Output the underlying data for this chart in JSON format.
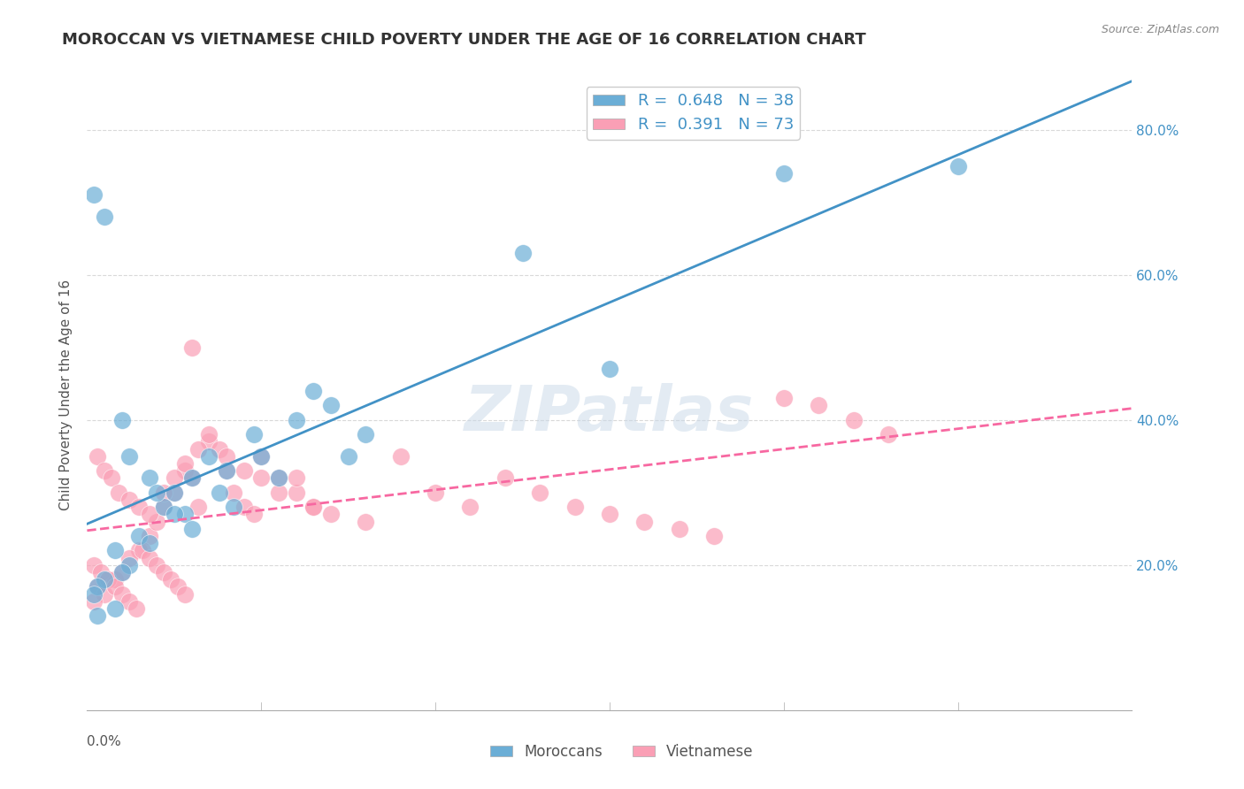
{
  "title": "MOROCCAN VS VIETNAMESE CHILD POVERTY UNDER THE AGE OF 16 CORRELATION CHART",
  "source": "Source: ZipAtlas.com",
  "ylabel": "Child Poverty Under the Age of 16",
  "xlim": [
    0.0,
    0.3
  ],
  "ylim": [
    0.0,
    0.87
  ],
  "moroccan_R": "0.648",
  "moroccan_N": "38",
  "vietnamese_R": "0.391",
  "vietnamese_N": "73",
  "moroccan_color": "#6baed6",
  "vietnamese_color": "#fa9fb5",
  "moroccan_line_color": "#4292c6",
  "vietnamese_line_color": "#f768a1",
  "moroccan_scatter_x": [
    0.005,
    0.003,
    0.002,
    0.012,
    0.008,
    0.015,
    0.018,
    0.01,
    0.022,
    0.025,
    0.03,
    0.028,
    0.035,
    0.04,
    0.038,
    0.042,
    0.048,
    0.05,
    0.055,
    0.06,
    0.065,
    0.07,
    0.075,
    0.08,
    0.01,
    0.012,
    0.018,
    0.02,
    0.025,
    0.03,
    0.15,
    0.2,
    0.125,
    0.25,
    0.002,
    0.005,
    0.008,
    0.003
  ],
  "moroccan_scatter_y": [
    0.18,
    0.17,
    0.16,
    0.2,
    0.22,
    0.24,
    0.23,
    0.19,
    0.28,
    0.3,
    0.32,
    0.27,
    0.35,
    0.33,
    0.3,
    0.28,
    0.38,
    0.35,
    0.32,
    0.4,
    0.44,
    0.42,
    0.35,
    0.38,
    0.4,
    0.35,
    0.32,
    0.3,
    0.27,
    0.25,
    0.47,
    0.74,
    0.63,
    0.75,
    0.71,
    0.68,
    0.14,
    0.13
  ],
  "vietnamese_scatter_x": [
    0.003,
    0.005,
    0.002,
    0.008,
    0.01,
    0.015,
    0.012,
    0.018,
    0.02,
    0.022,
    0.025,
    0.028,
    0.03,
    0.032,
    0.035,
    0.038,
    0.04,
    0.042,
    0.045,
    0.048,
    0.05,
    0.055,
    0.06,
    0.065,
    0.003,
    0.005,
    0.007,
    0.009,
    0.012,
    0.015,
    0.018,
    0.022,
    0.025,
    0.028,
    0.032,
    0.035,
    0.04,
    0.045,
    0.05,
    0.055,
    0.06,
    0.065,
    0.07,
    0.08,
    0.09,
    0.1,
    0.11,
    0.12,
    0.13,
    0.14,
    0.15,
    0.16,
    0.17,
    0.18,
    0.2,
    0.21,
    0.22,
    0.23,
    0.002,
    0.004,
    0.006,
    0.008,
    0.01,
    0.012,
    0.014,
    0.016,
    0.018,
    0.02,
    0.022,
    0.024,
    0.026,
    0.028,
    0.03
  ],
  "vietnamese_scatter_y": [
    0.17,
    0.16,
    0.15,
    0.18,
    0.19,
    0.22,
    0.21,
    0.24,
    0.26,
    0.28,
    0.3,
    0.33,
    0.32,
    0.28,
    0.37,
    0.36,
    0.33,
    0.3,
    0.28,
    0.27,
    0.35,
    0.32,
    0.3,
    0.28,
    0.35,
    0.33,
    0.32,
    0.3,
    0.29,
    0.28,
    0.27,
    0.3,
    0.32,
    0.34,
    0.36,
    0.38,
    0.35,
    0.33,
    0.32,
    0.3,
    0.32,
    0.28,
    0.27,
    0.26,
    0.35,
    0.3,
    0.28,
    0.32,
    0.3,
    0.28,
    0.27,
    0.26,
    0.25,
    0.24,
    0.43,
    0.42,
    0.4,
    0.38,
    0.2,
    0.19,
    0.18,
    0.17,
    0.16,
    0.15,
    0.14,
    0.22,
    0.21,
    0.2,
    0.19,
    0.18,
    0.17,
    0.16,
    0.5
  ],
  "watermark": "ZIPatlas",
  "background_color": "#ffffff",
  "grid_color": "#d0d0d0",
  "title_fontsize": 13,
  "axis_label_fontsize": 11,
  "tick_fontsize": 11
}
